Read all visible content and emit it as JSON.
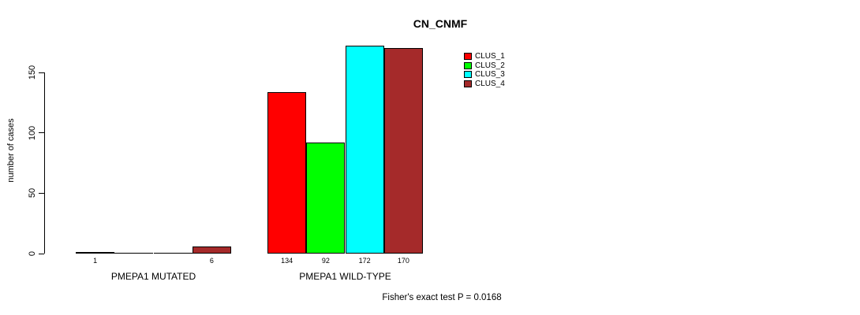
{
  "chart": {
    "title": "CN_CNMF",
    "ylabel": "number of cases",
    "footer": "Fisher's exact test P = 0.0168"
  },
  "chart_data": {
    "type": "bar",
    "title": "CN_CNMF",
    "xlabel": "",
    "ylabel": "number of cases",
    "categories": [
      "PMEPA1 MUTATED",
      "PMEPA1 WILD-TYPE"
    ],
    "series": [
      {
        "name": "CLUS_1",
        "color": "#FF0000",
        "values": [
          1,
          134
        ]
      },
      {
        "name": "CLUS_2",
        "color": "#00FF00",
        "values": [
          0,
          92
        ]
      },
      {
        "name": "CLUS_3",
        "color": "#00FFFF",
        "values": [
          0,
          172
        ]
      },
      {
        "name": "CLUS_4",
        "color": "#A52A2A",
        "values": [
          6,
          170
        ]
      }
    ],
    "value_labels": [
      [
        "1",
        "",
        "",
        "6"
      ],
      [
        "134",
        "92",
        "172",
        "170"
      ]
    ],
    "yticks": [
      0,
      50,
      100,
      150
    ],
    "ylim": [
      0,
      150
    ],
    "grid": false,
    "legend": {
      "position": "top-right",
      "entries": [
        "CLUS_1",
        "CLUS_2",
        "CLUS_3",
        "CLUS_4"
      ]
    },
    "annotation": "Fisher's exact test P = 0.0168"
  }
}
